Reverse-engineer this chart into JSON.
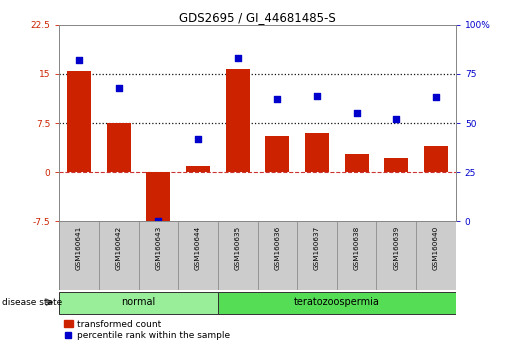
{
  "title": "GDS2695 / GI_44681485-S",
  "samples": [
    "GSM160641",
    "GSM160642",
    "GSM160643",
    "GSM160644",
    "GSM160635",
    "GSM160636",
    "GSM160637",
    "GSM160638",
    "GSM160639",
    "GSM160640"
  ],
  "bar_values": [
    15.5,
    7.5,
    -8.5,
    1.0,
    15.8,
    5.5,
    6.0,
    2.8,
    2.2,
    4.0
  ],
  "dot_values_pct": [
    82,
    68,
    0,
    42,
    83,
    62,
    64,
    55,
    52,
    63
  ],
  "ylim_left": [
    -7.5,
    22.5
  ],
  "ylim_right": [
    0,
    100
  ],
  "yticks_left": [
    -7.5,
    0,
    7.5,
    15.0,
    22.5
  ],
  "ytick_labels_left": [
    "-7.5",
    "0",
    "7.5",
    "15",
    "22.5"
  ],
  "yticks_right": [
    0,
    25,
    50,
    75,
    100
  ],
  "ytick_labels_right": [
    "0",
    "25",
    "50",
    "75",
    "100%"
  ],
  "hlines": [
    15.0,
    7.5
  ],
  "hline_zero": 0,
  "bar_color": "#cc2200",
  "dot_color": "#0000cc",
  "zero_line_color": "#cc3333",
  "dotted_line_color": "#111111",
  "groups": [
    {
      "label": "normal",
      "indices": [
        0,
        1,
        2,
        3
      ],
      "color": "#99ee99"
    },
    {
      "label": "teratozoospermia",
      "indices": [
        4,
        5,
        6,
        7,
        8,
        9
      ],
      "color": "#55dd55"
    }
  ],
  "disease_state_label": "disease state",
  "legend_bar_label": "transformed count",
  "legend_dot_label": "percentile rank within the sample",
  "bg_color": "#ffffff",
  "plot_bg_color": "#ffffff",
  "tick_label_color_left": "#cc2200",
  "tick_label_color_right": "#0000cc",
  "sample_box_color": "#cccccc",
  "border_color": "#000000"
}
